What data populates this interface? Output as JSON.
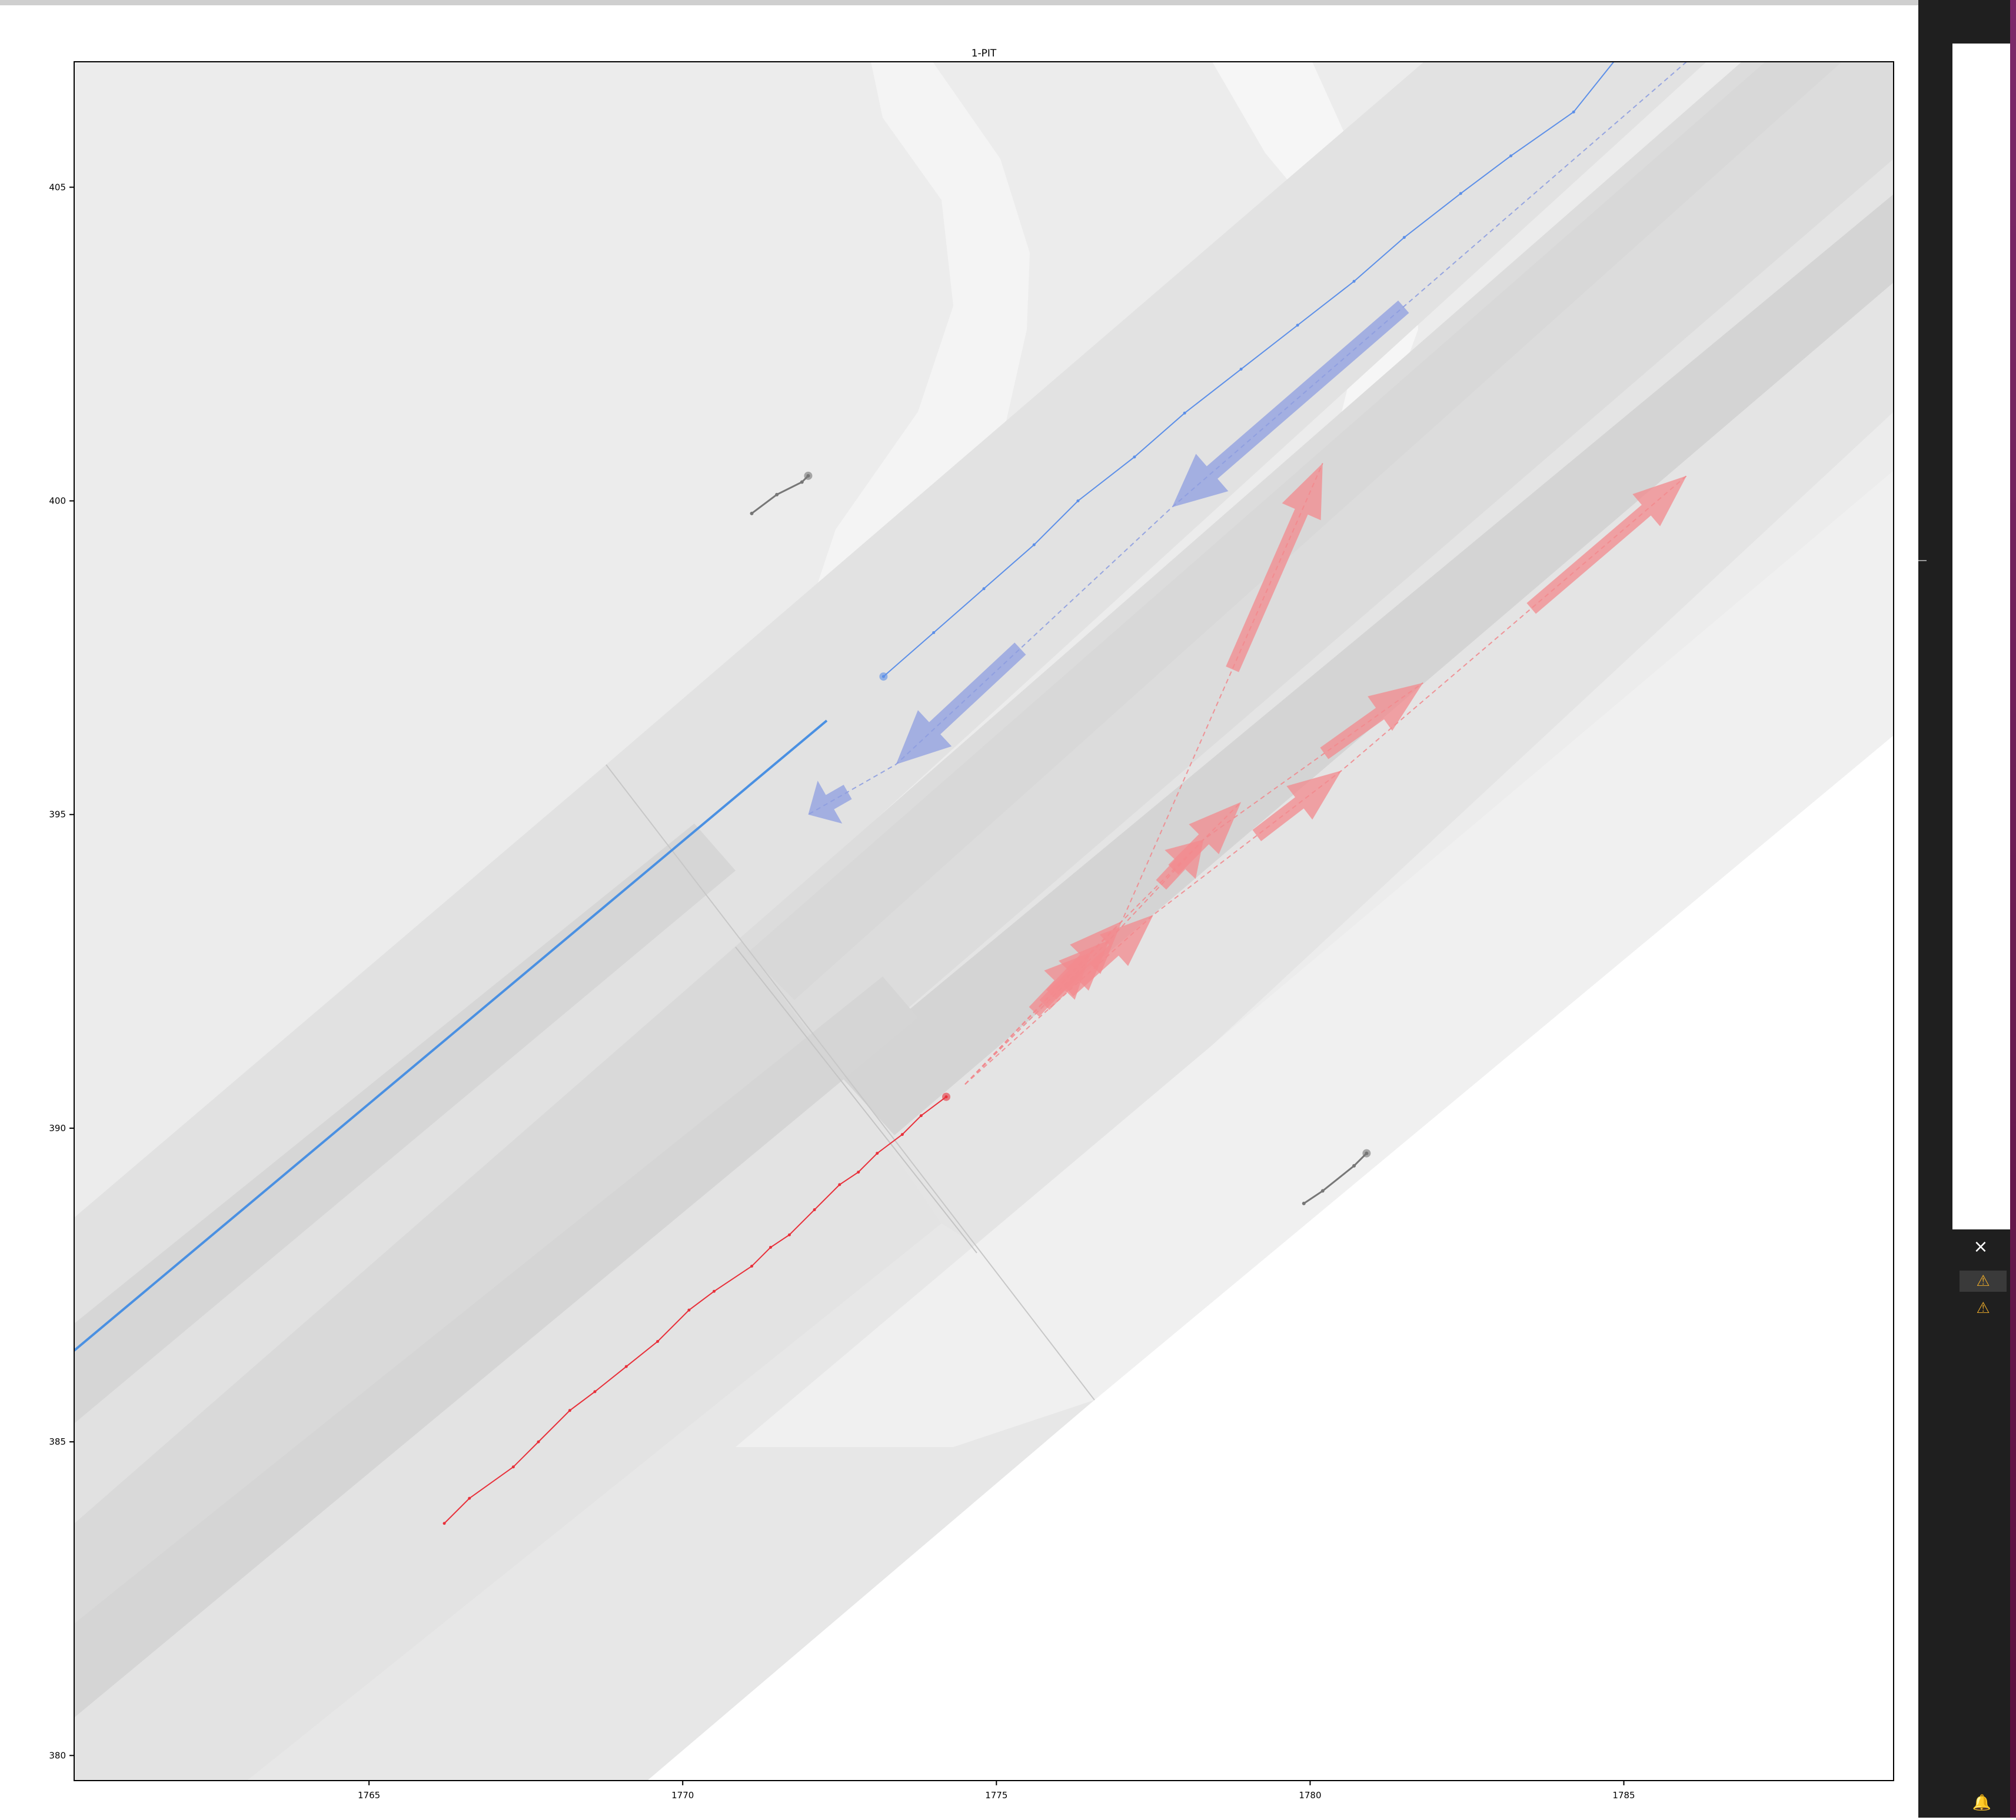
{
  "window": {
    "close_icon": "close-icon"
  },
  "plot": {
    "title": "1-PIT",
    "x_ticks": [
      "1765",
      "1770",
      "1775",
      "1780",
      "1785"
    ],
    "y_ticks": [
      "380",
      "385",
      "390",
      "395",
      "400",
      "405"
    ],
    "xlim": [
      1760.3,
      1789.3
    ],
    "ylim": [
      379.6,
      407.0
    ],
    "colors": {
      "ego": "#e8303a",
      "ego_pred": "#f08a8e",
      "agent": "#5c8fe8",
      "agent_pred": "#8e9fe0",
      "lane": "#d7d7d7",
      "road": "#ececec"
    }
  },
  "chart_data": {
    "type": "scatter",
    "title": "1-PIT",
    "xlim": [
      1760.3,
      1789.3
    ],
    "ylim": [
      379.6,
      407.0
    ],
    "series": [
      {
        "role": "ego-history",
        "color": "#e8303a",
        "points": [
          [
            1766.2,
            383.7
          ],
          [
            1766.6,
            384.1
          ],
          [
            1767.3,
            384.6
          ],
          [
            1767.7,
            385.0
          ],
          [
            1768.2,
            385.5
          ],
          [
            1768.6,
            385.8
          ],
          [
            1769.1,
            386.2
          ],
          [
            1769.6,
            386.6
          ],
          [
            1770.1,
            387.1
          ],
          [
            1770.5,
            387.4
          ],
          [
            1771.1,
            387.8
          ],
          [
            1771.4,
            388.1
          ],
          [
            1771.7,
            388.3
          ],
          [
            1772.1,
            388.7
          ],
          [
            1772.5,
            389.1
          ],
          [
            1772.8,
            389.3
          ],
          [
            1773.1,
            389.6
          ],
          [
            1773.5,
            389.9
          ],
          [
            1773.8,
            390.2
          ],
          [
            1774.2,
            390.5
          ]
        ]
      },
      {
        "role": "agent-history",
        "color": "#5c8fe8",
        "points": [
          [
            1785.0,
            407.2
          ],
          [
            1784.2,
            406.2
          ],
          [
            1783.2,
            405.5
          ],
          [
            1782.4,
            404.9
          ],
          [
            1781.5,
            404.2
          ],
          [
            1780.7,
            403.5
          ],
          [
            1779.8,
            402.8
          ],
          [
            1778.9,
            402.1
          ],
          [
            1778.0,
            401.4
          ],
          [
            1777.2,
            400.7
          ],
          [
            1776.3,
            400.0
          ],
          [
            1775.6,
            399.3
          ],
          [
            1774.8,
            398.6
          ],
          [
            1774.0,
            397.9
          ],
          [
            1773.2,
            397.2
          ]
        ]
      },
      {
        "role": "ego-predictions",
        "color": "#f08a8e",
        "trajectories": [
          [
            [
              1774.5,
              390.7
            ],
            [
              1777.0,
              393.3
            ],
            [
              1780.2,
              400.6
            ]
          ],
          [
            [
              1774.5,
              390.7
            ],
            [
              1776.5,
              392.8
            ],
            [
              1778.9,
              395.2
            ]
          ],
          [
            [
              1774.5,
              390.7
            ],
            [
              1777.5,
              393.4
            ],
            [
              1780.5,
              395.7
            ],
            [
              1786.0,
              400.4
            ]
          ],
          [
            [
              1774.5,
              390.7
            ],
            [
              1776.8,
              393.0
            ],
            [
              1778.3,
              394.6
            ],
            [
              1781.8,
              397.1
            ]
          ]
        ]
      },
      {
        "role": "agent-predictions",
        "color": "#8e9fe0",
        "trajectories": [
          [
            [
              1786.0,
              407.0
            ],
            [
              1777.8,
              399.9
            ],
            [
              1773.4,
              395.8
            ],
            [
              1772.0,
              395.0
            ]
          ]
        ]
      },
      {
        "role": "static-object-1",
        "color": "#777777",
        "points": [
          [
            1771.1,
            399.8
          ],
          [
            1771.5,
            400.1
          ],
          [
            1771.9,
            400.3
          ],
          [
            1772.0,
            400.4
          ]
        ]
      },
      {
        "role": "static-object-2",
        "color": "#777777",
        "points": [
          [
            1779.9,
            388.8
          ],
          [
            1780.2,
            389.0
          ],
          [
            1780.7,
            389.4
          ],
          [
            1780.9,
            389.6
          ]
        ]
      }
    ]
  },
  "sidebar": {
    "close_icon": "close-icon",
    "warnings": [
      "⚠",
      "⚠"
    ],
    "bell_icon": "bell-icon"
  }
}
